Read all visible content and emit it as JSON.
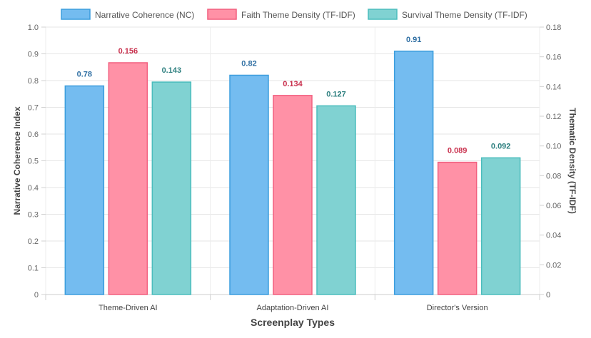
{
  "chart_data": {
    "type": "bar",
    "title": "",
    "categories": [
      "Theme-Driven AI",
      "Adaptation-Driven AI",
      "Director's Version"
    ],
    "xlabel": "Screenplay Types",
    "ylabel": "Narrative Coherence Index",
    "y2label": "Thematic Density (TF-IDF)",
    "ylim": [
      0,
      1.0
    ],
    "y2lim": [
      0,
      0.18
    ],
    "yticks": [
      "0",
      "0.1",
      "0.2",
      "0.3",
      "0.4",
      "0.5",
      "0.6",
      "0.7",
      "0.8",
      "0.9",
      "1.0"
    ],
    "y2ticks": [
      "0",
      "0.02",
      "0.04",
      "0.06",
      "0.08",
      "0.10",
      "0.12",
      "0.14",
      "0.16",
      "0.18"
    ],
    "legend_position": "top",
    "grid": true,
    "series": [
      {
        "name": "Narrative Coherence (NC)",
        "axis": "left",
        "values": [
          0.78,
          0.82,
          0.91
        ],
        "labels": [
          "0.78",
          "0.82",
          "0.91"
        ],
        "fill": "#74bcf0",
        "stroke": "#3b9ddd",
        "label_color": "#2f6fa3"
      },
      {
        "name": "Faith Theme Density (TF-IDF)",
        "axis": "right",
        "values": [
          0.156,
          0.134,
          0.089
        ],
        "labels": [
          "0.156",
          "0.134",
          "0.089"
        ],
        "fill": "#ff91a6",
        "stroke": "#f25f7f",
        "label_color": "#c9304d"
      },
      {
        "name": "Survival Theme Density (TF-IDF)",
        "axis": "right",
        "values": [
          0.143,
          0.127,
          0.092
        ],
        "labels": [
          "0.143",
          "0.127",
          "0.092"
        ],
        "fill": "#80d2d2",
        "stroke": "#4bbdbd",
        "label_color": "#2d7f7f"
      }
    ]
  }
}
